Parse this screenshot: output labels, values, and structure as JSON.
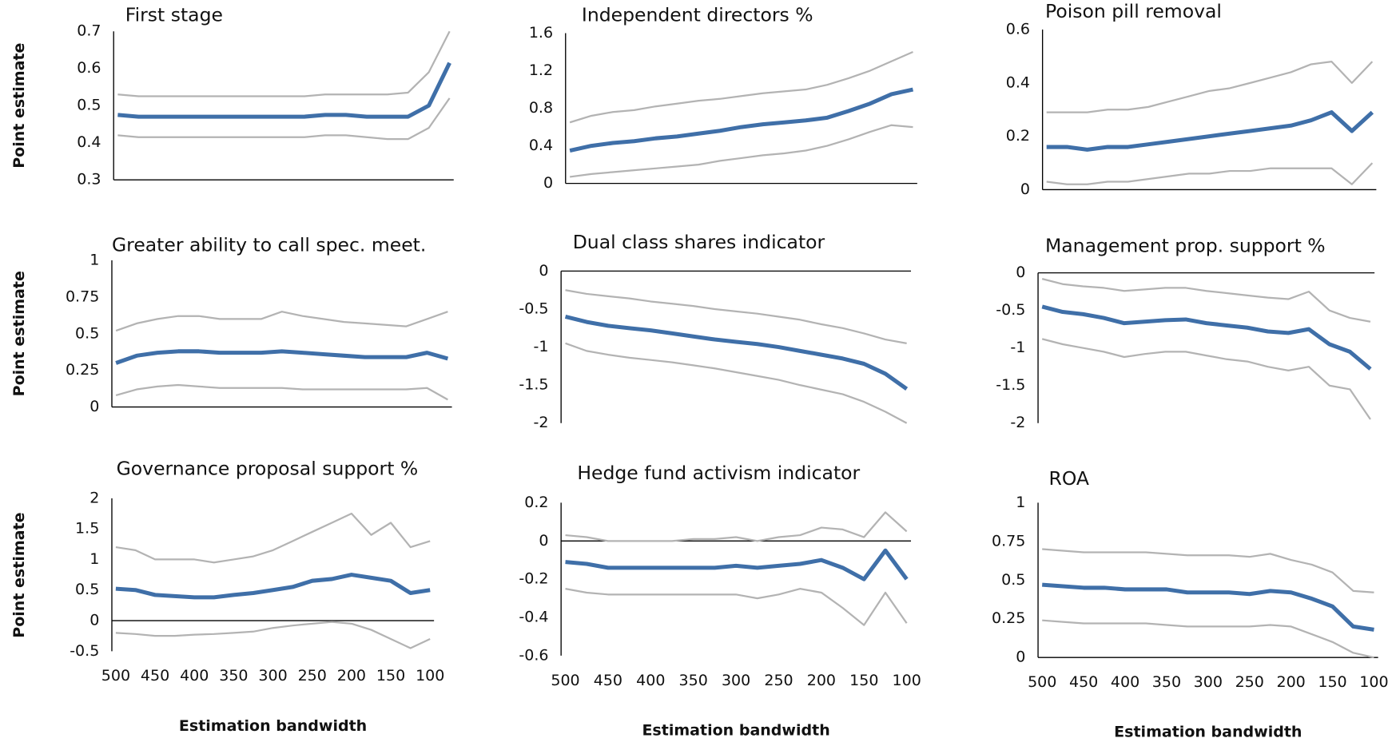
{
  "chart_data": [
    {
      "type": "line",
      "title": "First stage",
      "ylabel": "Point estimate",
      "x": [
        500,
        475,
        450,
        425,
        400,
        375,
        350,
        325,
        300,
        275,
        250,
        225,
        200,
        175,
        150,
        125,
        100
      ],
      "xlim": [
        505,
        95
      ],
      "ylim": [
        0.3,
        0.7
      ],
      "yticks": [
        0.3,
        0.4,
        0.5,
        0.6,
        0.7
      ],
      "series": [
        {
          "color": "#b3b3b3",
          "values": [
            0.53,
            0.525,
            0.525,
            0.525,
            0.525,
            0.525,
            0.525,
            0.525,
            0.525,
            0.525,
            0.53,
            0.53,
            0.53,
            0.53,
            0.535,
            0.59,
            0.7
          ]
        },
        {
          "color": "#b3b3b3",
          "values": [
            0.42,
            0.415,
            0.415,
            0.415,
            0.415,
            0.415,
            0.415,
            0.415,
            0.415,
            0.415,
            0.42,
            0.42,
            0.415,
            0.41,
            0.41,
            0.44,
            0.52
          ]
        },
        {
          "color": "#3f6fa8",
          "values": [
            0.475,
            0.47,
            0.47,
            0.47,
            0.47,
            0.47,
            0.47,
            0.47,
            0.47,
            0.47,
            0.475,
            0.475,
            0.47,
            0.47,
            0.47,
            0.5,
            0.615
          ]
        }
      ]
    },
    {
      "type": "line",
      "title": "Independent directors %",
      "x": [
        500,
        475,
        450,
        425,
        400,
        375,
        350,
        325,
        300,
        275,
        250,
        225,
        200,
        175,
        150,
        125,
        100
      ],
      "xlim": [
        505,
        95
      ],
      "ylim": [
        0,
        1.6
      ],
      "yticks": [
        0,
        0.4,
        0.8,
        1.2,
        1.6
      ],
      "series": [
        {
          "color": "#b3b3b3",
          "values": [
            0.65,
            0.72,
            0.76,
            0.78,
            0.82,
            0.85,
            0.88,
            0.9,
            0.93,
            0.96,
            0.98,
            1.0,
            1.05,
            1.12,
            1.2,
            1.3,
            1.4
          ]
        },
        {
          "color": "#b3b3b3",
          "values": [
            0.07,
            0.1,
            0.12,
            0.14,
            0.16,
            0.18,
            0.2,
            0.24,
            0.27,
            0.3,
            0.32,
            0.35,
            0.4,
            0.47,
            0.55,
            0.62,
            0.6
          ]
        },
        {
          "color": "#3f6fa8",
          "values": [
            0.35,
            0.4,
            0.43,
            0.45,
            0.48,
            0.5,
            0.53,
            0.56,
            0.6,
            0.63,
            0.65,
            0.67,
            0.7,
            0.77,
            0.85,
            0.95,
            1.0
          ]
        }
      ]
    },
    {
      "type": "line",
      "title": "Poison pill removal",
      "x": [
        500,
        475,
        450,
        425,
        400,
        375,
        350,
        325,
        300,
        275,
        250,
        225,
        200,
        175,
        150,
        125,
        100
      ],
      "xlim": [
        505,
        95
      ],
      "ylim": [
        0,
        0.6
      ],
      "yticks": [
        0,
        0.2,
        0.4,
        0.6
      ],
      "series": [
        {
          "color": "#b3b3b3",
          "values": [
            0.29,
            0.29,
            0.29,
            0.3,
            0.3,
            0.31,
            0.33,
            0.35,
            0.37,
            0.38,
            0.4,
            0.42,
            0.44,
            0.47,
            0.48,
            0.4,
            0.48
          ]
        },
        {
          "color": "#b3b3b3",
          "values": [
            0.03,
            0.02,
            0.02,
            0.03,
            0.03,
            0.04,
            0.05,
            0.06,
            0.06,
            0.07,
            0.07,
            0.08,
            0.08,
            0.08,
            0.08,
            0.02,
            0.1
          ]
        },
        {
          "color": "#3f6fa8",
          "values": [
            0.16,
            0.16,
            0.15,
            0.16,
            0.16,
            0.17,
            0.18,
            0.19,
            0.2,
            0.21,
            0.22,
            0.23,
            0.24,
            0.26,
            0.29,
            0.22,
            0.29
          ]
        }
      ]
    },
    {
      "type": "line",
      "title": "Greater ability to call spec. meet.",
      "ylabel": "Point estimate",
      "x": [
        500,
        475,
        450,
        425,
        400,
        375,
        350,
        325,
        300,
        275,
        250,
        225,
        200,
        175,
        150,
        125,
        100
      ],
      "xlim": [
        505,
        95
      ],
      "ylim": [
        0,
        1
      ],
      "yticks": [
        0,
        0.25,
        0.5,
        0.75,
        1
      ],
      "series": [
        {
          "color": "#b3b3b3",
          "values": [
            0.52,
            0.57,
            0.6,
            0.62,
            0.62,
            0.6,
            0.6,
            0.6,
            0.65,
            0.62,
            0.6,
            0.58,
            0.57,
            0.56,
            0.55,
            0.6,
            0.65
          ]
        },
        {
          "color": "#b3b3b3",
          "values": [
            0.08,
            0.12,
            0.14,
            0.15,
            0.14,
            0.13,
            0.13,
            0.13,
            0.13,
            0.12,
            0.12,
            0.12,
            0.12,
            0.12,
            0.12,
            0.13,
            0.05
          ]
        },
        {
          "color": "#3f6fa8",
          "values": [
            0.3,
            0.35,
            0.37,
            0.38,
            0.38,
            0.37,
            0.37,
            0.37,
            0.38,
            0.37,
            0.36,
            0.35,
            0.34,
            0.34,
            0.34,
            0.37,
            0.33
          ]
        }
      ]
    },
    {
      "type": "line",
      "title": "Dual class shares indicator",
      "x": [
        500,
        475,
        450,
        425,
        400,
        375,
        350,
        325,
        300,
        275,
        250,
        225,
        200,
        175,
        150,
        125,
        100
      ],
      "xlim": [
        505,
        95
      ],
      "ylim": [
        -2,
        0
      ],
      "yticks": [
        -2,
        -1.5,
        -1,
        -0.5,
        0
      ],
      "series": [
        {
          "color": "#b3b3b3",
          "values": [
            -0.25,
            -0.3,
            -0.33,
            -0.36,
            -0.4,
            -0.43,
            -0.46,
            -0.5,
            -0.53,
            -0.56,
            -0.6,
            -0.64,
            -0.7,
            -0.75,
            -0.82,
            -0.9,
            -0.95
          ]
        },
        {
          "color": "#b3b3b3",
          "values": [
            -0.95,
            -1.05,
            -1.1,
            -1.14,
            -1.17,
            -1.2,
            -1.24,
            -1.28,
            -1.33,
            -1.38,
            -1.43,
            -1.5,
            -1.56,
            -1.62,
            -1.72,
            -1.85,
            -2.0
          ]
        },
        {
          "color": "#3f6fa8",
          "values": [
            -0.6,
            -0.67,
            -0.72,
            -0.75,
            -0.78,
            -0.82,
            -0.86,
            -0.9,
            -0.93,
            -0.96,
            -1.0,
            -1.05,
            -1.1,
            -1.15,
            -1.22,
            -1.35,
            -1.55
          ]
        }
      ]
    },
    {
      "type": "line",
      "title": "Management prop. support %",
      "x": [
        500,
        475,
        450,
        425,
        400,
        375,
        350,
        325,
        300,
        275,
        250,
        225,
        200,
        175,
        150,
        125,
        100
      ],
      "xlim": [
        505,
        95
      ],
      "ylim": [
        -2,
        0
      ],
      "yticks": [
        -2,
        -1.5,
        -1,
        -0.5,
        0
      ],
      "series": [
        {
          "color": "#b3b3b3",
          "values": [
            -0.08,
            -0.15,
            -0.18,
            -0.2,
            -0.24,
            -0.22,
            -0.2,
            -0.2,
            -0.24,
            -0.27,
            -0.3,
            -0.33,
            -0.35,
            -0.25,
            -0.5,
            -0.6,
            -0.65
          ]
        },
        {
          "color": "#b3b3b3",
          "values": [
            -0.88,
            -0.95,
            -1.0,
            -1.05,
            -1.12,
            -1.08,
            -1.05,
            -1.05,
            -1.1,
            -1.15,
            -1.18,
            -1.25,
            -1.3,
            -1.25,
            -1.5,
            -1.55,
            -1.95
          ]
        },
        {
          "color": "#3f6fa8",
          "values": [
            -0.45,
            -0.52,
            -0.55,
            -0.6,
            -0.67,
            -0.65,
            -0.63,
            -0.62,
            -0.67,
            -0.7,
            -0.73,
            -0.78,
            -0.8,
            -0.75,
            -0.95,
            -1.05,
            -1.28
          ]
        }
      ]
    },
    {
      "type": "line",
      "title": "Governance proposal support %",
      "ylabel": "Point estimate",
      "xlabel": "Estimation bandwidth",
      "x": [
        500,
        475,
        450,
        425,
        400,
        375,
        350,
        325,
        300,
        275,
        250,
        225,
        200,
        175,
        150,
        125,
        100
      ],
      "xlim": [
        505,
        95
      ],
      "xticks": [
        500,
        450,
        400,
        350,
        300,
        250,
        200,
        150,
        100
      ],
      "ylim": [
        -0.5,
        2
      ],
      "yticks": [
        -0.5,
        0,
        0.5,
        1,
        1.5,
        2
      ],
      "series": [
        {
          "color": "#b3b3b3",
          "values": [
            1.2,
            1.15,
            1.0,
            1.0,
            1.0,
            0.95,
            1.0,
            1.05,
            1.15,
            1.3,
            1.45,
            1.6,
            1.75,
            1.4,
            1.6,
            1.2,
            1.3
          ]
        },
        {
          "color": "#b3b3b3",
          "values": [
            -0.2,
            -0.22,
            -0.25,
            -0.25,
            -0.23,
            -0.22,
            -0.2,
            -0.18,
            -0.12,
            -0.08,
            -0.05,
            -0.02,
            -0.05,
            -0.15,
            -0.3,
            -0.45,
            -0.3
          ]
        },
        {
          "color": "#3f6fa8",
          "values": [
            0.52,
            0.5,
            0.42,
            0.4,
            0.38,
            0.38,
            0.42,
            0.45,
            0.5,
            0.55,
            0.65,
            0.68,
            0.75,
            0.7,
            0.65,
            0.45,
            0.5
          ]
        }
      ]
    },
    {
      "type": "line",
      "title": "Hedge fund activism indicator",
      "xlabel": "Estimation bandwidth",
      "x": [
        500,
        475,
        450,
        425,
        400,
        375,
        350,
        325,
        300,
        275,
        250,
        225,
        200,
        175,
        150,
        125,
        100
      ],
      "xlim": [
        505,
        95
      ],
      "xticks": [
        500,
        450,
        400,
        350,
        300,
        250,
        200,
        150,
        100
      ],
      "ylim": [
        -0.6,
        0.2
      ],
      "yticks": [
        -0.6,
        -0.4,
        -0.2,
        0,
        0.2
      ],
      "series": [
        {
          "color": "#b3b3b3",
          "values": [
            0.03,
            0.02,
            0.0,
            0.0,
            0.0,
            0.0,
            0.01,
            0.01,
            0.02,
            0.0,
            0.02,
            0.03,
            0.07,
            0.06,
            0.02,
            0.15,
            0.05
          ]
        },
        {
          "color": "#b3b3b3",
          "values": [
            -0.25,
            -0.27,
            -0.28,
            -0.28,
            -0.28,
            -0.28,
            -0.28,
            -0.28,
            -0.28,
            -0.3,
            -0.28,
            -0.25,
            -0.27,
            -0.35,
            -0.44,
            -0.27,
            -0.43
          ]
        },
        {
          "color": "#3f6fa8",
          "values": [
            -0.11,
            -0.12,
            -0.14,
            -0.14,
            -0.14,
            -0.14,
            -0.14,
            -0.14,
            -0.13,
            -0.14,
            -0.13,
            -0.12,
            -0.1,
            -0.14,
            -0.2,
            -0.05,
            -0.2
          ]
        }
      ]
    },
    {
      "type": "line",
      "title": "ROA",
      "xlabel": "Estimation bandwidth",
      "x": [
        500,
        475,
        450,
        425,
        400,
        375,
        350,
        325,
        300,
        275,
        250,
        225,
        200,
        175,
        150,
        125,
        100
      ],
      "xlim": [
        505,
        95
      ],
      "xticks": [
        500,
        450,
        400,
        350,
        300,
        250,
        200,
        150,
        100
      ],
      "ylim": [
        0,
        1
      ],
      "yticks": [
        0,
        0.25,
        0.5,
        0.75,
        1
      ],
      "series": [
        {
          "color": "#b3b3b3",
          "values": [
            0.7,
            0.69,
            0.68,
            0.68,
            0.68,
            0.68,
            0.67,
            0.66,
            0.66,
            0.66,
            0.65,
            0.67,
            0.63,
            0.6,
            0.55,
            0.43,
            0.42
          ]
        },
        {
          "color": "#b3b3b3",
          "values": [
            0.24,
            0.23,
            0.22,
            0.22,
            0.22,
            0.22,
            0.21,
            0.2,
            0.2,
            0.2,
            0.2,
            0.21,
            0.2,
            0.15,
            0.1,
            0.03,
            0.0
          ]
        },
        {
          "color": "#3f6fa8",
          "values": [
            0.47,
            0.46,
            0.45,
            0.45,
            0.44,
            0.44,
            0.44,
            0.42,
            0.42,
            0.42,
            0.41,
            0.43,
            0.42,
            0.38,
            0.33,
            0.2,
            0.18
          ]
        }
      ]
    }
  ]
}
